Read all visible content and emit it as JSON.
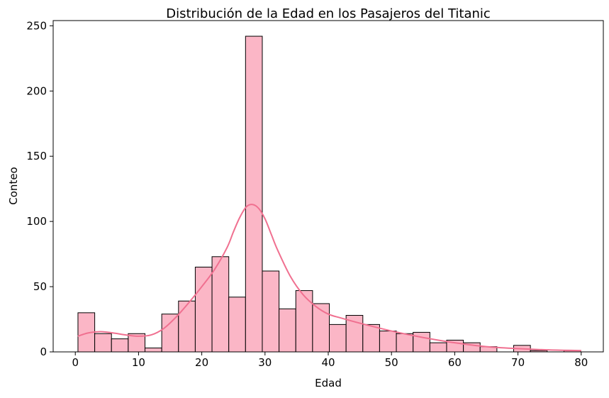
{
  "chart_data": {
    "type": "bar",
    "title": "Distribución de la Edad en los Pasajeros del Titanic",
    "xlabel": "Edad",
    "ylabel": "Conteo",
    "xlim": [
      -3.5,
      83.5
    ],
    "ylim": [
      0,
      254
    ],
    "xticks": [
      0,
      10,
      20,
      30,
      40,
      50,
      60,
      70,
      80
    ],
    "yticks": [
      0,
      50,
      100,
      150,
      200,
      250
    ],
    "bin_width": 2.65,
    "bins": [
      {
        "x0": 0.42,
        "count": 30
      },
      {
        "x0": 3.07,
        "count": 14
      },
      {
        "x0": 5.72,
        "count": 10
      },
      {
        "x0": 8.37,
        "count": 14
      },
      {
        "x0": 11.02,
        "count": 3
      },
      {
        "x0": 13.67,
        "count": 29
      },
      {
        "x0": 16.32,
        "count": 39
      },
      {
        "x0": 18.97,
        "count": 65
      },
      {
        "x0": 21.62,
        "count": 73
      },
      {
        "x0": 24.27,
        "count": 42
      },
      {
        "x0": 26.92,
        "count": 242
      },
      {
        "x0": 29.57,
        "count": 62
      },
      {
        "x0": 32.22,
        "count": 33
      },
      {
        "x0": 34.87,
        "count": 47
      },
      {
        "x0": 37.52,
        "count": 37
      },
      {
        "x0": 40.17,
        "count": 21
      },
      {
        "x0": 42.82,
        "count": 28
      },
      {
        "x0": 45.47,
        "count": 21
      },
      {
        "x0": 48.12,
        "count": 16
      },
      {
        "x0": 50.77,
        "count": 14
      },
      {
        "x0": 53.42,
        "count": 15
      },
      {
        "x0": 56.07,
        "count": 7
      },
      {
        "x0": 58.72,
        "count": 9
      },
      {
        "x0": 61.37,
        "count": 7
      },
      {
        "x0": 64.02,
        "count": 4
      },
      {
        "x0": 66.67,
        "count": 0
      },
      {
        "x0": 69.32,
        "count": 5
      },
      {
        "x0": 71.97,
        "count": 1
      },
      {
        "x0": 74.62,
        "count": 0
      },
      {
        "x0": 77.27,
        "count": 1
      }
    ],
    "kde": {
      "x": [
        0.4,
        2,
        4,
        6,
        8,
        10,
        12,
        14,
        16,
        18,
        20,
        22,
        24,
        25,
        26,
        27,
        28,
        29,
        30,
        31,
        32,
        34,
        36,
        38,
        40,
        42,
        45,
        50,
        55,
        60,
        65,
        70,
        75,
        80
      ],
      "y": [
        12,
        14.5,
        15.5,
        14.5,
        13,
        12,
        13,
        18,
        27,
        38,
        50,
        63,
        80,
        92,
        103,
        111,
        113,
        110,
        102,
        90,
        78,
        58,
        44,
        35,
        29,
        26,
        22,
        16,
        11,
        7,
        4,
        2.5,
        1.5,
        1
      ]
    },
    "colors": {
      "bar_fill": "#fbb6c6",
      "bar_edge": "#000000",
      "kde_line": "#f07090"
    },
    "grid": false,
    "legend": "none"
  }
}
